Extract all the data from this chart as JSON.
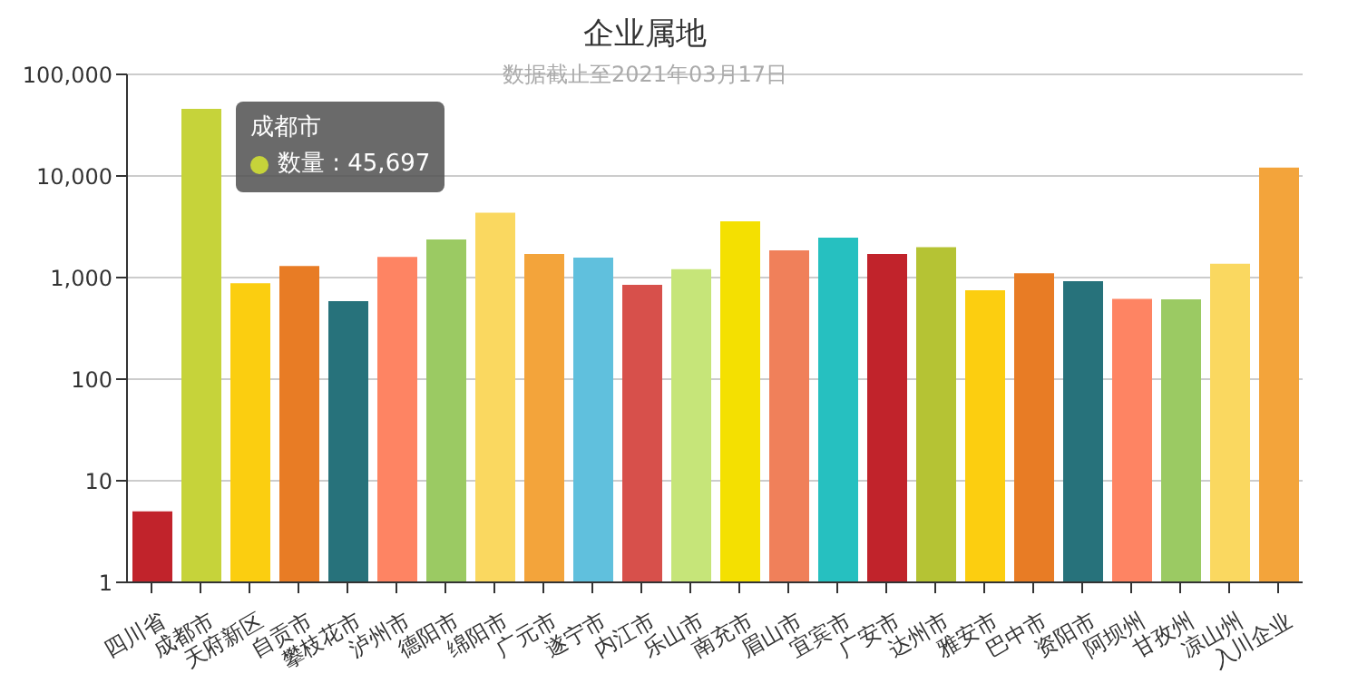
{
  "chart_data": {
    "type": "bar",
    "title": "企业属地",
    "subtitle": "数据截止至2021年03月17日",
    "categories": [
      "四川省",
      "成都市",
      "天府新区",
      "自贡市",
      "攀枝花市",
      "泸州市",
      "德阳市",
      "绵阳市",
      "广元市",
      "遂宁市",
      "内江市",
      "乐山市",
      "南充市",
      "眉山市",
      "宜宾市",
      "广安市",
      "达州市",
      "雅安市",
      "巴中市",
      "资阳市",
      "阿坝州",
      "甘孜州",
      "凉山州",
      "入川企业"
    ],
    "values": [
      5,
      45697,
      880,
      1300,
      586,
      1600,
      2370,
      4340,
      1710,
      1570,
      849,
      1210,
      3580,
      1850,
      2470,
      1710,
      1990,
      750,
      1100,
      921,
      618,
      610,
      1370,
      12100
    ],
    "colors": [
      "#c1232b",
      "#c6d33a",
      "#fbce10",
      "#e87c25",
      "#27727b",
      "#fe8463",
      "#9bca63",
      "#fad860",
      "#f3a43b",
      "#60c0dd",
      "#d7504b",
      "#c6e579",
      "#f4e001",
      "#f0805a",
      "#26c0c0",
      "#c1232b",
      "#b5c334",
      "#fcce10",
      "#e87c25",
      "#27727b",
      "#fe8463",
      "#9bca63",
      "#fad860",
      "#f3a43b"
    ],
    "log": "y",
    "ylim": [
      1,
      100000
    ],
    "yticks": [
      1,
      {
        "value": 10,
        "label": "10"
      },
      {
        "value": 100,
        "label": "100"
      },
      {
        "value": 1000,
        "label": "1,000"
      },
      {
        "value": 10000,
        "label": "10,000"
      },
      {
        "value": 100000,
        "label": "100,000"
      }
    ],
    "grid": "y",
    "legend": false,
    "annotations": [
      "成都市",
      "数量 : 45,697"
    ]
  }
}
